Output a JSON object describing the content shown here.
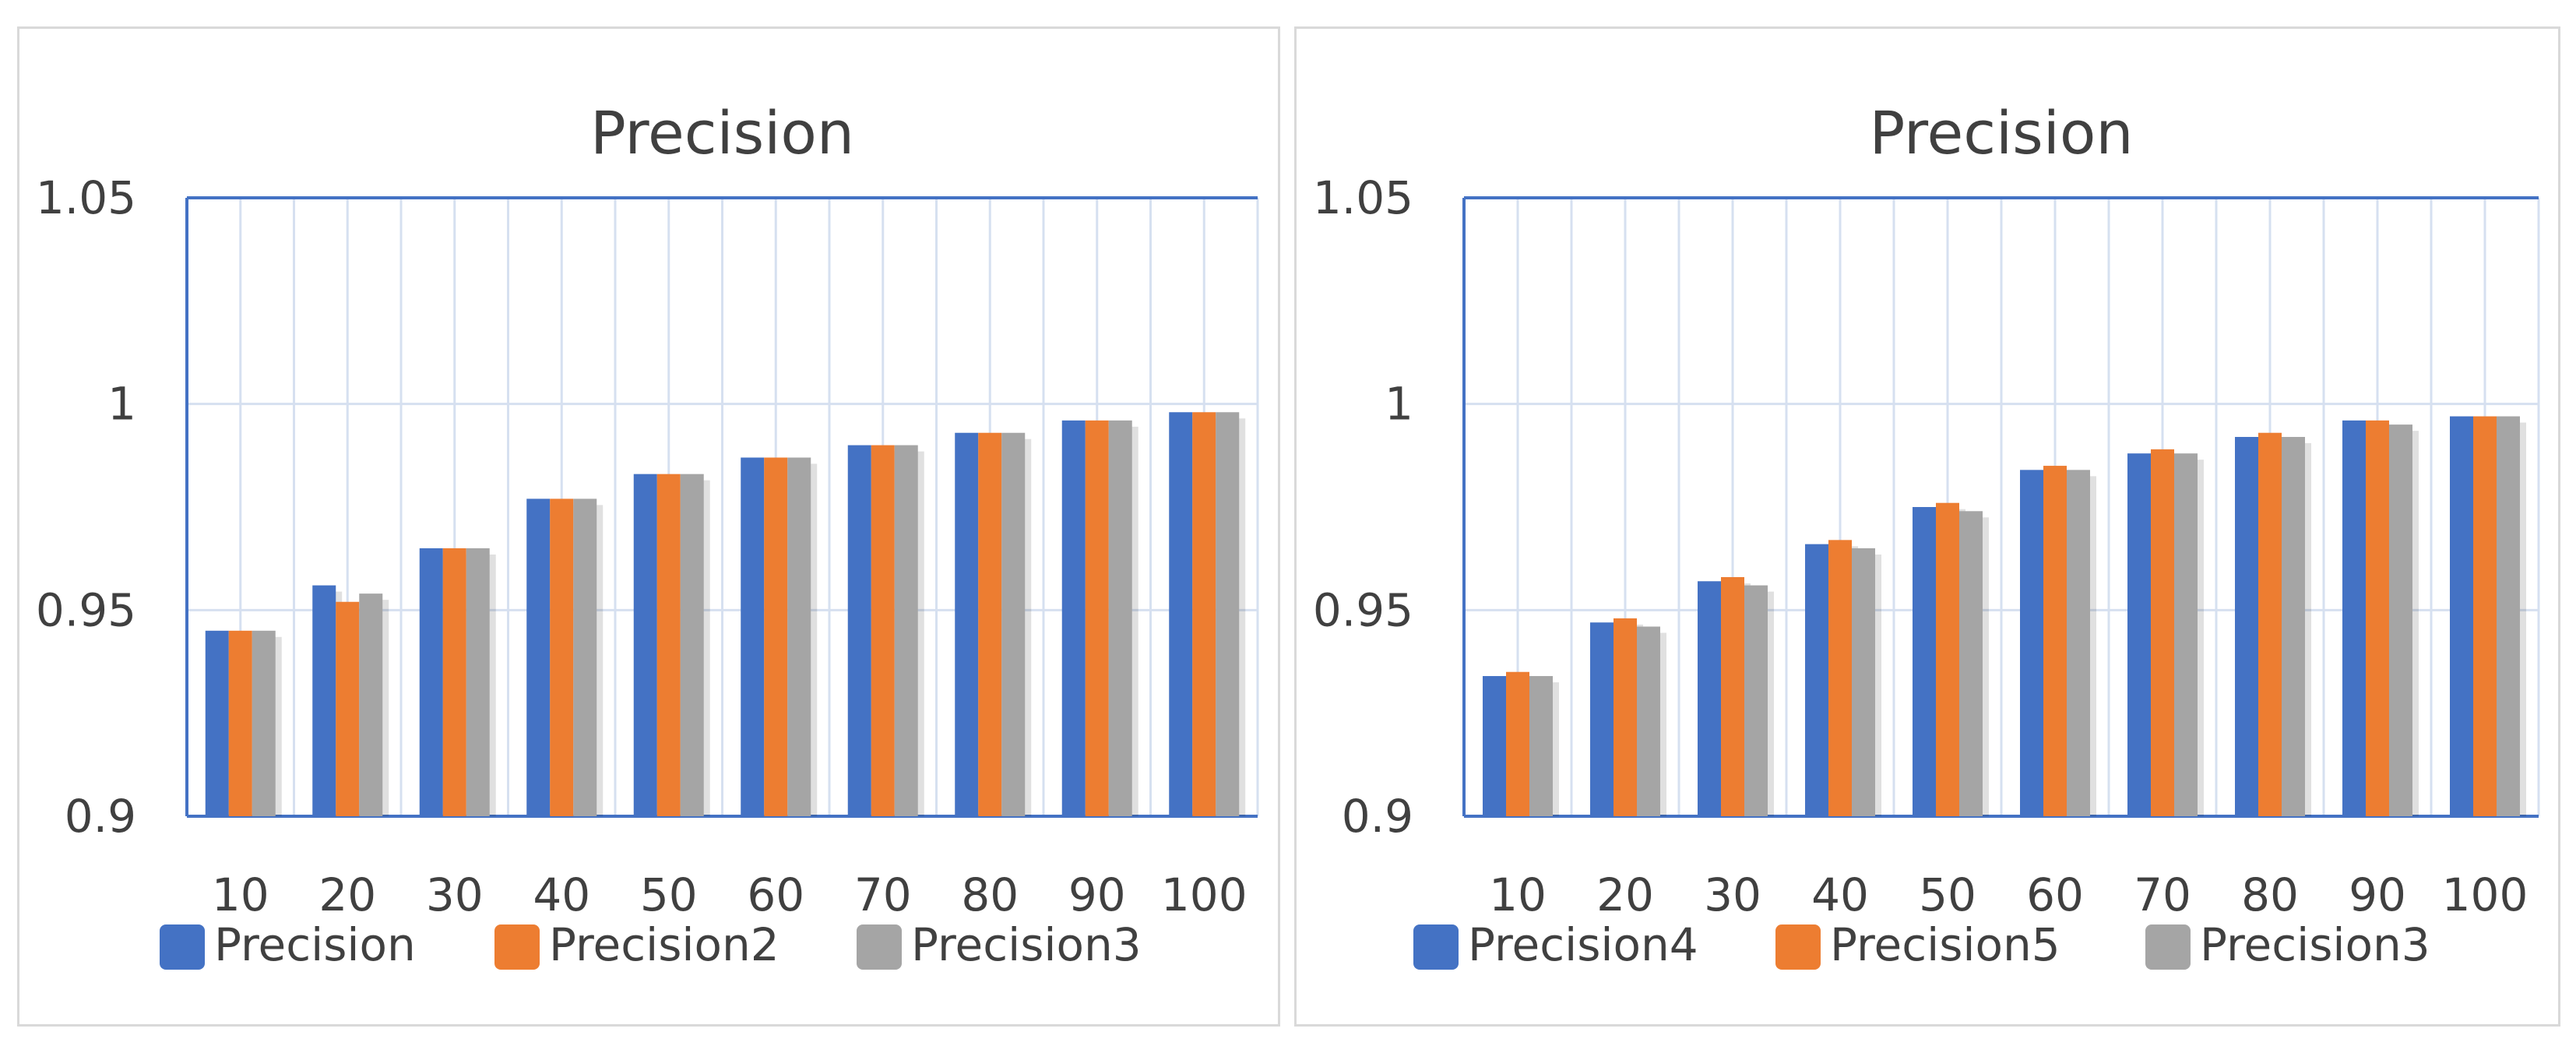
{
  "colors": {
    "series_blue": "#4472C4",
    "series_orange": "#ED7D31",
    "series_gray": "#A5A5A5",
    "gridline": "#D6E0F0",
    "axis_frame": "#4472C4",
    "text": "#404040"
  },
  "chart_data": [
    {
      "type": "bar",
      "title": "Precision",
      "xlabel": "",
      "ylabel": "",
      "categories": [
        "10",
        "20",
        "30",
        "40",
        "50",
        "60",
        "70",
        "80",
        "90",
        "100"
      ],
      "yticks": [
        "0.9",
        "0.95",
        "1",
        "1.05"
      ],
      "ylim": [
        0.9,
        1.05
      ],
      "grid": true,
      "legend_position": "bottom",
      "series": [
        {
          "name": "Precision",
          "color": "#4472C4",
          "values": [
            0.945,
            0.956,
            0.965,
            0.977,
            0.983,
            0.987,
            0.99,
            0.993,
            0.996,
            0.998
          ]
        },
        {
          "name": "Precision2",
          "color": "#ED7D31",
          "values": [
            0.945,
            0.952,
            0.965,
            0.977,
            0.983,
            0.987,
            0.99,
            0.993,
            0.996,
            0.998
          ]
        },
        {
          "name": "Precision3",
          "color": "#A5A5A5",
          "values": [
            0.945,
            0.954,
            0.965,
            0.977,
            0.983,
            0.987,
            0.99,
            0.993,
            0.996,
            0.998
          ]
        }
      ]
    },
    {
      "type": "bar",
      "title": "Precision",
      "xlabel": "",
      "ylabel": "",
      "categories": [
        "10",
        "20",
        "30",
        "40",
        "50",
        "60",
        "70",
        "80",
        "90",
        "100"
      ],
      "yticks": [
        "0.9",
        "0.95",
        "1",
        "1.05"
      ],
      "ylim": [
        0.9,
        1.05
      ],
      "grid": true,
      "legend_position": "bottom",
      "series": [
        {
          "name": "Precision4",
          "color": "#4472C4",
          "values": [
            0.934,
            0.947,
            0.957,
            0.966,
            0.975,
            0.984,
            0.988,
            0.992,
            0.996,
            0.997
          ]
        },
        {
          "name": "Precision5",
          "color": "#ED7D31",
          "values": [
            0.935,
            0.948,
            0.958,
            0.967,
            0.976,
            0.985,
            0.989,
            0.993,
            0.996,
            0.997
          ]
        },
        {
          "name": "Precision3",
          "color": "#A5A5A5",
          "values": [
            0.934,
            0.946,
            0.956,
            0.965,
            0.974,
            0.984,
            0.988,
            0.992,
            0.995,
            0.997
          ]
        }
      ]
    }
  ]
}
